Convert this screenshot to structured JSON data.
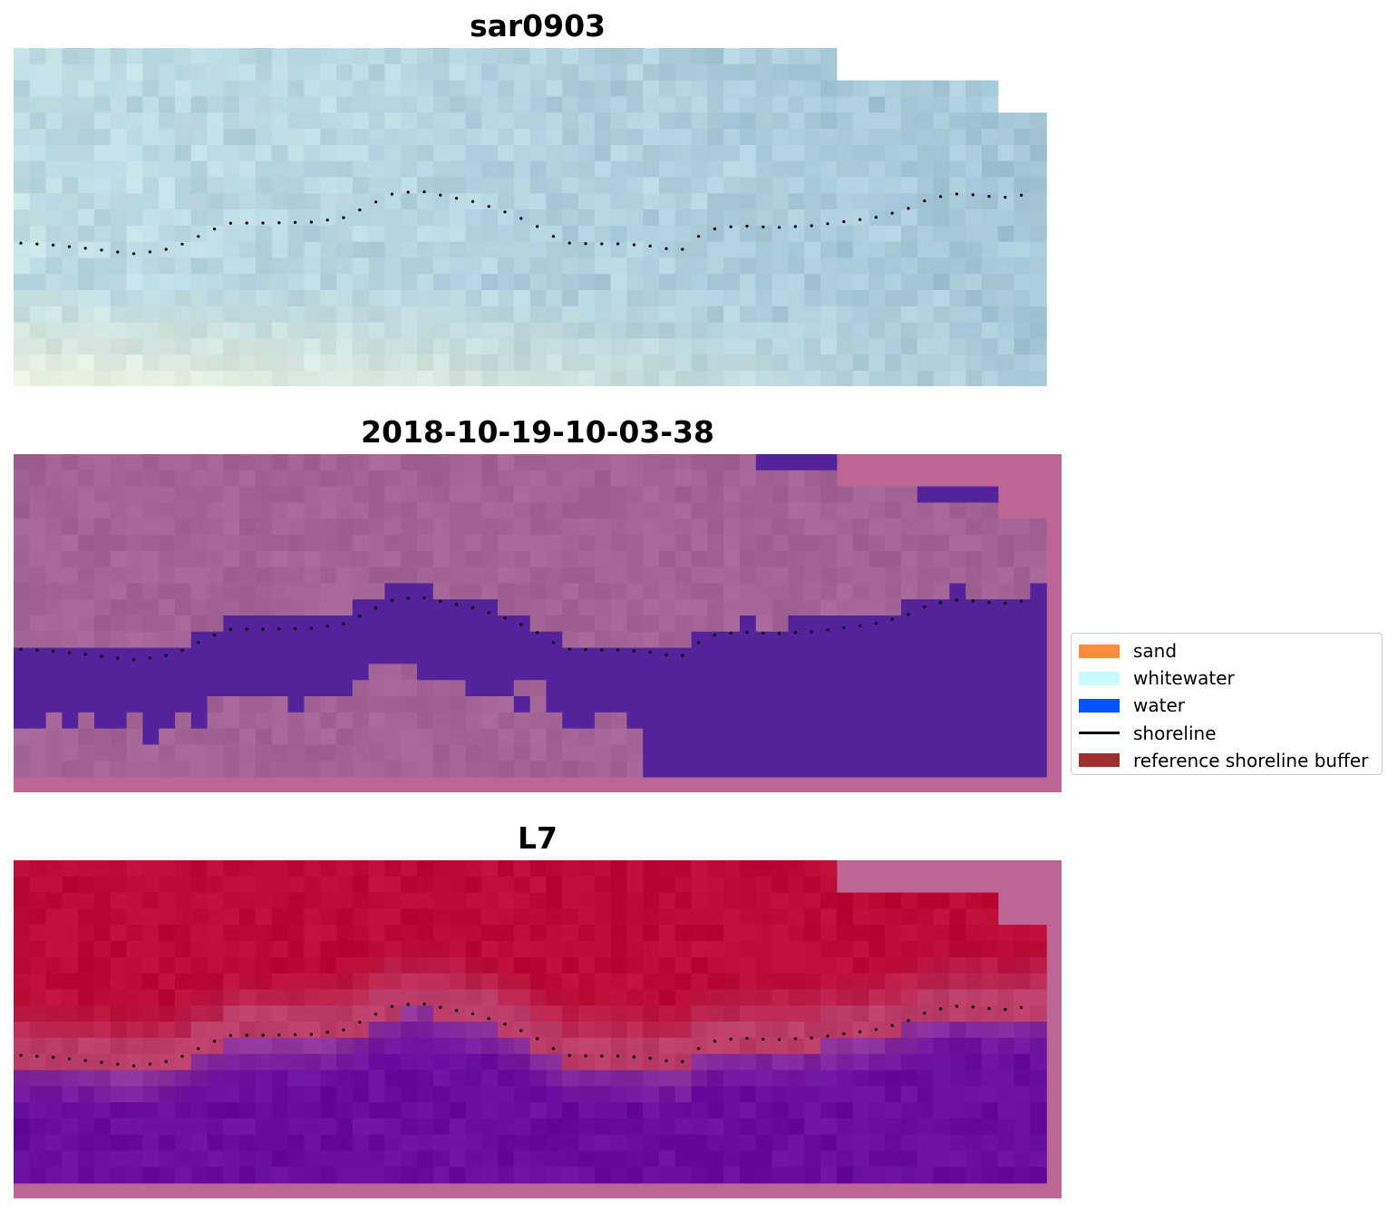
{
  "panels": [
    {
      "title": "sar0903",
      "style": "rgb"
    },
    {
      "title": "2018-10-19-10-03-38",
      "style": "classification"
    },
    {
      "title": "L7",
      "style": "index"
    }
  ],
  "legend": {
    "items": [
      {
        "label": "sand",
        "color": "#ff8c3c",
        "kind": "patch"
      },
      {
        "label": "whitewater",
        "color": "#c8fcfc",
        "kind": "patch"
      },
      {
        "label": "water",
        "color": "#0055ff",
        "kind": "patch"
      },
      {
        "label": "shoreline",
        "color": "#000000",
        "kind": "line"
      },
      {
        "label": "reference shoreline buffer",
        "color": "#a03030",
        "kind": "patch"
      }
    ]
  },
  "colors": {
    "nodata": "#bd6696",
    "water_overlay": "#54239b",
    "land_overlay": "#a26495",
    "index_high": "#bb0a33",
    "index_low": "#6b0ca0",
    "shoreline_points": "#000000"
  }
}
